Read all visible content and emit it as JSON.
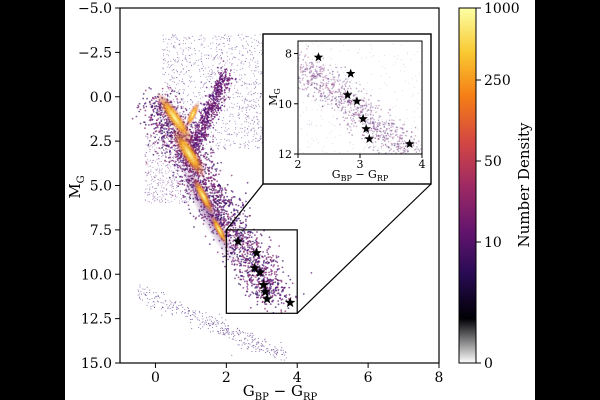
{
  "chart_data": [
    {
      "type": "scatter",
      "subtype": "density-hexbin (color-magnitude diagram)",
      "xlabel": "G_BP - G_RP",
      "ylabel": "M_G",
      "xlim": [
        -1,
        8
      ],
      "ylim": [
        15.0,
        -5.0
      ],
      "y_inverted": true,
      "xticks": [
        0,
        2,
        4,
        6,
        8
      ],
      "yticks": [
        -5.0,
        -2.5,
        0.0,
        2.5,
        5.0,
        7.5,
        10.0,
        12.5,
        15.0
      ],
      "xtick_labels": [
        "0",
        "2",
        "4",
        "6",
        "8"
      ],
      "ytick_labels": [
        "−5.0",
        "−2.5",
        "0.0",
        "2.5",
        "5.0",
        "7.5",
        "10.0",
        "12.5",
        "15.0"
      ],
      "highlight_box": {
        "x": [
          2.0,
          4.0
        ],
        "y": [
          7.5,
          12.2
        ]
      },
      "series": [
        {
          "name": "highlighted stars",
          "marker": "star",
          "points": [
            {
              "x": 2.33,
              "y": 8.15
            },
            {
              "x": 2.85,
              "y": 8.8
            },
            {
              "x": 2.8,
              "y": 9.65
            },
            {
              "x": 2.95,
              "y": 9.9
            },
            {
              "x": 3.05,
              "y": 10.6
            },
            {
              "x": 3.1,
              "y": 11.0
            },
            {
              "x": 3.15,
              "y": 11.4
            },
            {
              "x": 3.8,
              "y": 11.6
            }
          ]
        }
      ]
    },
    {
      "type": "scatter",
      "role": "inset zoom",
      "xlabel": "G_BP - G_RP",
      "ylabel": "M_G",
      "xlim": [
        2,
        4
      ],
      "ylim": [
        12,
        7.5
      ],
      "y_inverted": true,
      "xticks": [
        2,
        3,
        4
      ],
      "yticks": [
        8,
        10,
        12
      ],
      "xtick_labels": [
        "2",
        "3",
        "4"
      ],
      "ytick_labels": [
        "8",
        "10",
        "12"
      ]
    },
    {
      "type": "colorbar",
      "label": "Number Density",
      "ticks": [
        0,
        10,
        50,
        250,
        1000
      ],
      "tick_labels": [
        "0",
        "10",
        "50",
        "250",
        "1000"
      ],
      "colormap": "inferno",
      "colormap_stops": [
        "#fcffa4",
        "#f9c932",
        "#f57d15",
        "#d44842",
        "#9f2a63",
        "#65156e",
        "#280b53",
        "#000004",
        "#ffffff"
      ]
    }
  ]
}
